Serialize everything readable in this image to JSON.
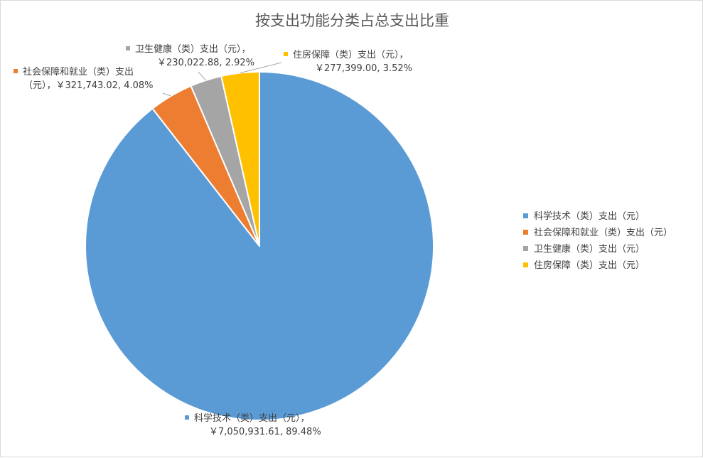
{
  "chart_data": {
    "type": "pie",
    "title": "按支出功能分类占总支出比重",
    "series": [
      {
        "name": "科学技术（类）支出（元）",
        "value": 7050931.61,
        "percent": 89.48,
        "value_label": "￥7,050,931.61",
        "percent_label": "89.48%",
        "color": "#5B9BD5"
      },
      {
        "name": "社会保障和就业（类）支出（元）",
        "value": 321743.02,
        "percent": 4.08,
        "value_label": "￥321,743.02",
        "percent_label": "4.08%",
        "color": "#ED7D31"
      },
      {
        "name": "卫生健康（类）支出（元）",
        "value": 230022.88,
        "percent": 2.92,
        "value_label": "￥230,022.88",
        "percent_label": "2.92%",
        "color": "#A5A5A5"
      },
      {
        "name": "住房保障（类）支出（元）",
        "value": 277399.0,
        "percent": 3.52,
        "value_label": "￥277,399.00",
        "percent_label": "3.52%",
        "color": "#FFC000"
      }
    ],
    "legend_position": "right"
  },
  "data_labels": [
    {
      "line1": "社会保障和就业（类）支出",
      "line2": "（元），￥321,743.02, 4.08%"
    },
    {
      "line1": "卫生健康（类）支出（元），",
      "line2": "￥230,022.88, 2.92%"
    },
    {
      "line1": "住房保障（类）支出（元），",
      "line2": "￥277,399.00, 3.52%"
    },
    {
      "line1": "科学技术（类）支出（元），",
      "line2": "￥7,050,931.61, 89.48%"
    }
  ]
}
